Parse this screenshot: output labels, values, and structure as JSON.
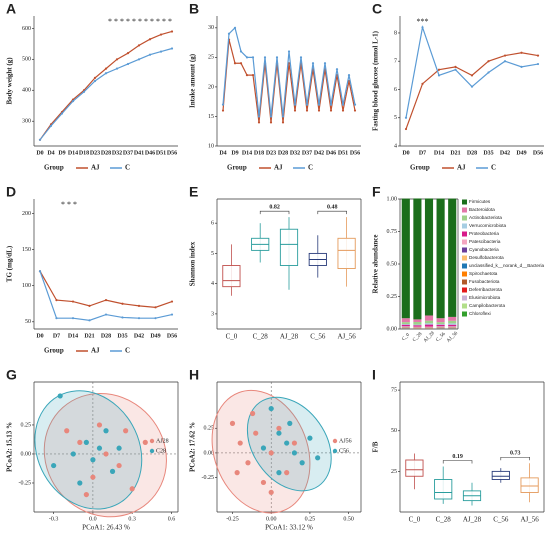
{
  "chart_data": [
    {
      "type": "line",
      "label": "A",
      "ylabel": "Body weight (g)",
      "legend_title": "Group",
      "annotation": "* * * * * * * * * * *",
      "categories": [
        "D0",
        "D4",
        "D9",
        "D14",
        "D18",
        "D23",
        "D28",
        "D32",
        "D37",
        "D41",
        "D46",
        "D51",
        "D56"
      ],
      "series": [
        {
          "name": "AJ",
          "color": "#c0502e",
          "values": [
            240,
            290,
            330,
            370,
            400,
            440,
            470,
            500,
            520,
            545,
            565,
            580,
            590
          ]
        },
        {
          "name": "C",
          "color": "#5b9bd5",
          "values": [
            240,
            285,
            325,
            365,
            395,
            430,
            455,
            470,
            485,
            500,
            515,
            525,
            535
          ]
        }
      ],
      "ylim": [
        220,
        640
      ],
      "yticks": [
        300,
        400,
        500,
        600
      ]
    },
    {
      "type": "line",
      "label": "B",
      "ylabel": "Intake amount (g)",
      "legend_title": "Group",
      "categories": [
        "D4",
        null,
        "D9",
        null,
        "D14",
        null,
        "D18",
        null,
        "D23",
        null,
        "D28",
        null,
        "D32",
        null,
        "D37",
        null,
        "D42",
        null,
        "D46",
        null,
        "D51",
        null,
        "D56"
      ],
      "series": [
        {
          "name": "AJ",
          "color": "#c0502e",
          "values": [
            16,
            28,
            24,
            24,
            22,
            22,
            14,
            24,
            14,
            24,
            14,
            24,
            16,
            24,
            16,
            23,
            16,
            23,
            16,
            22,
            16,
            21,
            16
          ]
        },
        {
          "name": "C",
          "color": "#5b9bd5",
          "values": [
            17,
            29,
            30,
            26,
            25,
            25,
            15,
            25,
            15,
            25,
            15,
            26,
            17,
            25,
            17,
            24,
            17,
            24,
            17,
            23,
            17,
            22,
            17
          ]
        }
      ],
      "ylim": [
        10,
        32
      ],
      "yticks": [
        10,
        15,
        20,
        25,
        30
      ]
    },
    {
      "type": "line",
      "label": "C",
      "ylabel": "Fasting blood glucose (mmol L-1)",
      "legend_title": "Group",
      "annotation": "***",
      "categories": [
        "D0",
        "D7",
        "D14",
        "D21",
        "D28",
        "D35",
        "D42",
        "D49",
        "D56"
      ],
      "series": [
        {
          "name": "AJ",
          "color": "#c0502e",
          "values": [
            4.6,
            6.2,
            6.7,
            6.8,
            6.5,
            7.0,
            7.2,
            7.3,
            7.2
          ]
        },
        {
          "name": "C",
          "color": "#5b9bd5",
          "values": [
            5.0,
            8.2,
            6.5,
            6.7,
            6.1,
            6.6,
            7.0,
            6.8,
            6.9
          ]
        }
      ],
      "ylim": [
        4,
        8.6
      ],
      "yticks": [
        4,
        5,
        6,
        7,
        8
      ]
    },
    {
      "type": "line",
      "label": "D",
      "ylabel": "TG (mg/dL)",
      "legend_title": "Group",
      "annotation": "*          *   *",
      "categories": [
        "D0",
        "D7",
        "D14",
        "D21",
        "D28",
        "D35",
        "D42",
        "D49",
        "D56"
      ],
      "series": [
        {
          "name": "AJ",
          "color": "#c0502e",
          "values": [
            120,
            80,
            78,
            72,
            80,
            75,
            72,
            70,
            78
          ]
        },
        {
          "name": "C",
          "color": "#5b9bd5",
          "values": [
            120,
            55,
            55,
            52,
            60,
            56,
            55,
            55,
            60
          ]
        }
      ],
      "ylim": [
        40,
        220
      ],
      "yticks": [
        50,
        100,
        150,
        200
      ]
    },
    {
      "type": "box",
      "label": "E",
      "ylabel": "Shannon index",
      "categories": [
        "C_0",
        "C_28",
        "AJ_28",
        "C_56",
        "AJ_56"
      ],
      "colors": [
        "#c0504d",
        "#2a9d9d",
        "#2a9d9d",
        "#283b7a",
        "#e49a5b"
      ],
      "min": [
        3.6,
        4.7,
        3.8,
        4.2,
        3.9
      ],
      "q1": [
        3.9,
        5.1,
        4.6,
        4.6,
        4.5
      ],
      "median": [
        4.1,
        5.3,
        5.3,
        4.8,
        5.1
      ],
      "q3": [
        4.6,
        5.5,
        5.8,
        5.0,
        5.5
      ],
      "max": [
        5.3,
        6.0,
        6.2,
        5.6,
        6.2
      ],
      "comparisons": [
        {
          "groups": [
            "C_28",
            "AJ_28"
          ],
          "label": "0.82"
        },
        {
          "groups": [
            "C_56",
            "AJ_56"
          ],
          "label": "0.48"
        }
      ],
      "ylim": [
        2.5,
        6.8
      ],
      "yticks": [
        3,
        4,
        5,
        6
      ]
    },
    {
      "type": "bar",
      "label": "F",
      "ylabel": "Relative abundance",
      "stacked": true,
      "categories": [
        "C_0",
        "C_28",
        "AJ_28",
        "C_56",
        "AJ_56"
      ],
      "series": [
        {
          "name": "Firmicutes",
          "color": "#1b6e1b",
          "values": [
            0.92,
            0.93,
            0.9,
            0.92,
            0.91
          ]
        },
        {
          "name": "Bacteroidota",
          "color": "#e377a8",
          "values": [
            0.03,
            0.02,
            0.04,
            0.03,
            0.03
          ]
        },
        {
          "name": "Actinobacteriota",
          "color": "#9fd18a",
          "values": [
            0.015,
            0.02,
            0.02,
            0.015,
            0.02
          ]
        },
        {
          "name": "Verrucomicrobiota",
          "color": "#a6cee3",
          "values": [
            0.005,
            0.005,
            0.01,
            0.005,
            0.01
          ]
        },
        {
          "name": "Proteobacteria",
          "color": "#d81b8a",
          "values": [
            0.01,
            0.01,
            0.015,
            0.01,
            0.01
          ]
        },
        {
          "name": "Patescibacteria",
          "color": "#f4a6c0",
          "values": [
            0.005,
            0.005,
            0.005,
            0.005,
            0.005
          ]
        },
        {
          "name": "Cyanobacteria",
          "color": "#6a3d9a",
          "values": [
            0.005,
            0.003,
            0.003,
            0.005,
            0.005
          ]
        },
        {
          "name": "Desulfobacterota",
          "color": "#fdbf6f",
          "values": [
            0.005,
            0.004,
            0.004,
            0.005,
            0.005
          ]
        },
        {
          "name": "unclassified_k__norank_d__Bacteria",
          "color": "#1f78b4",
          "values": [
            0.002,
            0.001,
            0.001,
            0.002,
            0.002
          ]
        },
        {
          "name": "Spirochaetota",
          "color": "#ff7f00",
          "values": [
            0.001,
            0.001,
            0.001,
            0.001,
            0.001
          ]
        },
        {
          "name": "Fusobacteriota",
          "color": "#b15928",
          "values": [
            0.001,
            0.001,
            0.001,
            0.001,
            0.001
          ]
        },
        {
          "name": "Deferribacterota",
          "color": "#e31a1c",
          "values": [
            0.001,
            0.001,
            0.001,
            0.001,
            0.001
          ]
        },
        {
          "name": "Elusimicrobiota",
          "color": "#cab2d6",
          "values": [
            0.001,
            0.001,
            0.001,
            0.001,
            0.001
          ]
        },
        {
          "name": "Campilobacterota",
          "color": "#b2df8a",
          "values": [
            0.001,
            0.001,
            0.001,
            0.001,
            0.001
          ]
        },
        {
          "name": "Chloroflexi",
          "color": "#33a02c",
          "values": [
            0.001,
            0.001,
            0.001,
            0.001,
            0.001
          ]
        }
      ],
      "ylim": [
        0,
        1
      ],
      "yticks": [
        {
          "value": 0,
          "label": "0.00"
        },
        0.25,
        {
          "value": 0.5,
          "label": "0.50"
        },
        0.75,
        {
          "value": 1,
          "label": "1.00"
        }
      ]
    },
    {
      "type": "scatter",
      "label": "G",
      "xlabel": "PCoA1: 26.43 %",
      "ylabel": "PCoA2: 15.13 %",
      "series": [
        {
          "name": "AJ28",
          "color": "#e8877c",
          "x": [
            -0.2,
            -0.1,
            0.0,
            0.05,
            0.1,
            0.2,
            0.25,
            0.3,
            0.4,
            -0.05
          ],
          "y": [
            0.2,
            0.1,
            -0.2,
            0.25,
            0.0,
            -0.1,
            0.2,
            -0.3,
            0.1,
            -0.35
          ]
        },
        {
          "name": "C28",
          "color": "#3aa6b9",
          "x": [
            -0.25,
            -0.15,
            -0.05,
            0.0,
            0.05,
            0.1,
            0.15,
            -0.1,
            -0.3,
            0.2
          ],
          "y": [
            0.5,
            0.0,
            0.1,
            -0.05,
            0.05,
            0.2,
            -0.15,
            -0.25,
            -0.1,
            0.05
          ]
        }
      ],
      "xlim": [
        -0.45,
        0.65
      ],
      "ylim": [
        -0.5,
        0.62
      ],
      "xticks": [
        -0.3,
        {
          "value": 0,
          "label": "0.0"
        },
        0.3,
        0.6
      ],
      "yticks": [
        -0.25,
        {
          "value": 0,
          "label": "0.00"
        },
        0.25
      ]
    },
    {
      "type": "scatter",
      "label": "H",
      "xlabel": "PCoA1: 33.12 %",
      "ylabel": "PCoA2: 17.62 %",
      "series": [
        {
          "name": "AJ56",
          "color": "#e8877c",
          "x": [
            -0.25,
            -0.2,
            -0.15,
            -0.1,
            -0.05,
            0.0,
            0.05,
            0.1,
            -0.22,
            -0.12,
            0.15,
            0.0
          ],
          "y": [
            0.3,
            0.1,
            -0.1,
            0.2,
            -0.3,
            0.0,
            0.25,
            -0.2,
            -0.2,
            0.4,
            0.1,
            -0.4
          ]
        },
        {
          "name": "C56",
          "color": "#3aa6b9",
          "x": [
            0.0,
            0.05,
            0.1,
            0.15,
            0.2,
            0.25,
            0.3,
            0.05,
            0.12,
            -0.05
          ],
          "y": [
            0.45,
            0.2,
            0.1,
            0.0,
            -0.1,
            0.15,
            -0.05,
            -0.2,
            0.3,
            0.05
          ]
        }
      ],
      "xlim": [
        -0.35,
        0.58
      ],
      "ylim": [
        -0.6,
        0.72
      ],
      "xticks": [
        -0.25,
        {
          "value": 0,
          "label": "0.00"
        },
        0.25,
        {
          "value": 0.5,
          "label": "0.50"
        }
      ],
      "yticks": [
        -0.25,
        {
          "value": 0,
          "label": "0.00"
        },
        0.25
      ]
    },
    {
      "type": "box",
      "label": "I",
      "ylabel": "F/B",
      "categories": [
        "C_0",
        "C_28",
        "AJ_28",
        "C_56",
        "AJ_56"
      ],
      "colors": [
        "#c0504d",
        "#2a9d9d",
        "#2a9d9d",
        "#283b7a",
        "#e49a5b"
      ],
      "min": [
        14,
        5,
        4,
        18,
        6
      ],
      "q1": [
        22,
        8,
        7,
        20,
        12
      ],
      "median": [
        26,
        12,
        10,
        22,
        16
      ],
      "q3": [
        32,
        20,
        13,
        25,
        21
      ],
      "max": [
        36,
        28,
        18,
        27,
        30
      ],
      "comparisons": [
        {
          "groups": [
            "C_28",
            "AJ_28"
          ],
          "label": "0.19"
        },
        {
          "groups": [
            "C_56",
            "AJ_56"
          ],
          "label": "0.73"
        }
      ],
      "ylim": [
        0,
        80
      ],
      "yticks": [
        25,
        50,
        75
      ]
    }
  ]
}
